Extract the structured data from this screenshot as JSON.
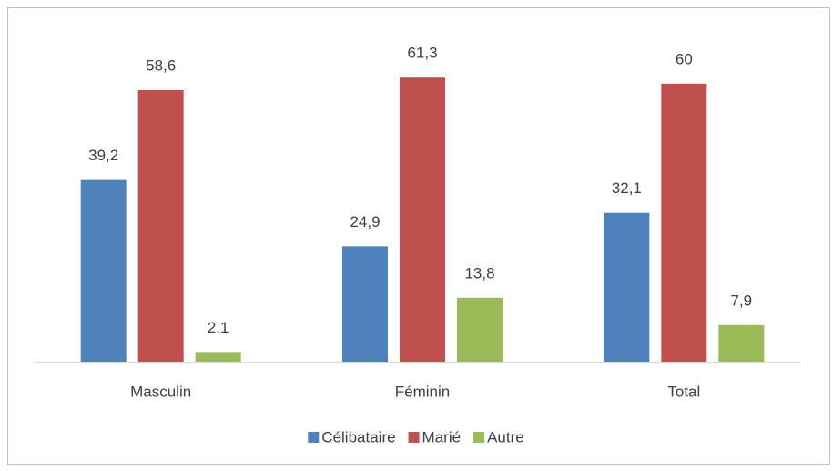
{
  "chart_data": {
    "type": "bar",
    "categories": [
      "Masculin",
      "Féminin",
      "Total"
    ],
    "series": [
      {
        "name": "Célibataire",
        "color": "#4f81bd",
        "values": [
          39.2,
          24.9,
          32.1
        ],
        "value_labels": [
          "39,2",
          "24,9",
          "32,1"
        ]
      },
      {
        "name": "Marié",
        "color": "#c0504d",
        "values": [
          58.6,
          61.3,
          60
        ],
        "value_labels": [
          "58,6",
          "61,3",
          "60"
        ]
      },
      {
        "name": "Autre",
        "color": "#9bbb59",
        "values": [
          2.1,
          13.8,
          7.9
        ],
        "value_labels": [
          "2,1",
          "13,8",
          "7,9"
        ]
      }
    ],
    "ylim": [
      0,
      70
    ],
    "legend": "bottom"
  }
}
